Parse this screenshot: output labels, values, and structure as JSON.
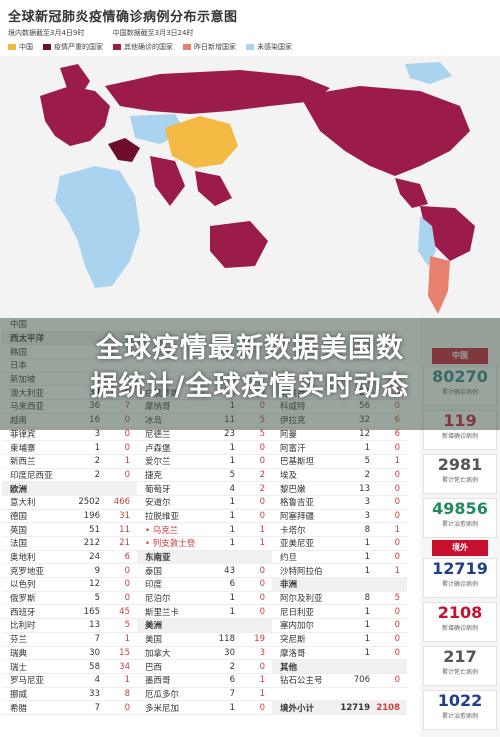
{
  "header": {
    "title": "全球新冠肺炎疫情确诊病例分布示意图",
    "domestic_cutoff": "境内数据截至3月4日9时",
    "foreign_cutoff": "中国数据截至3月3日24时"
  },
  "legend": [
    {
      "label": "中国",
      "color": "#f4b942"
    },
    {
      "label": "疫情严重的国家",
      "color": "#6d0f2a"
    },
    {
      "label": "其他确诊的国家",
      "color": "#9b1b4b"
    },
    {
      "label": "昨日新增国家",
      "color": "#e8806f"
    },
    {
      "label": "未感染国家",
      "color": "#a9d3ee"
    }
  ],
  "headline": {
    "line1": "全球疫情最新数据美国数",
    "line2": "据统计/全球疫情实时动态"
  },
  "table": {
    "col1": [
      {
        "name": "中国",
        "a": "",
        "b": ""
      },
      {
        "name": "西太平洋",
        "a": "",
        "b": "",
        "sec": true
      },
      {
        "name": "韩国",
        "a": "",
        "b": ""
      },
      {
        "name": "日本",
        "a": "",
        "b": ""
      },
      {
        "name": "新加坡",
        "a": "",
        "b": ""
      },
      {
        "name": "澳大利亚",
        "a": "39",
        "b": "6"
      },
      {
        "name": "马来西亚",
        "a": "36",
        "b": "7"
      },
      {
        "name": "越南",
        "a": "16",
        "b": "0"
      },
      {
        "name": "菲律宾",
        "a": "3",
        "b": "0"
      },
      {
        "name": "柬埔寨",
        "a": "1",
        "b": "0"
      },
      {
        "name": "新西兰",
        "a": "2",
        "b": "1"
      },
      {
        "name": "印度尼西亚",
        "a": "2",
        "b": "0"
      },
      {
        "name": "欧洲",
        "a": "",
        "b": "",
        "sec": true
      },
      {
        "name": "意大利",
        "a": "2502",
        "b": "466"
      },
      {
        "name": "德国",
        "a": "196",
        "b": "31"
      },
      {
        "name": "英国",
        "a": "51",
        "b": "11"
      },
      {
        "name": "法国",
        "a": "212",
        "b": "21"
      },
      {
        "name": "奥地利",
        "a": "24",
        "b": "6"
      },
      {
        "name": "克罗地亚",
        "a": "9",
        "b": "0"
      },
      {
        "name": "以色列",
        "a": "12",
        "b": "0"
      },
      {
        "name": "俄罗斯",
        "a": "5",
        "b": "0"
      },
      {
        "name": "西班牙",
        "a": "165",
        "b": "45"
      },
      {
        "name": "比利时",
        "a": "13",
        "b": "5"
      },
      {
        "name": "芬兰",
        "a": "7",
        "b": "1"
      },
      {
        "name": "瑞典",
        "a": "30",
        "b": "15"
      },
      {
        "name": "瑞士",
        "a": "58",
        "b": "34"
      },
      {
        "name": "罗马尼亚",
        "a": "4",
        "b": "1"
      },
      {
        "name": "挪威",
        "a": "33",
        "b": "8"
      },
      {
        "name": "希腊",
        "a": "7",
        "b": "0"
      }
    ],
    "col2": [
      {
        "name": "",
        "a": "",
        "b": ""
      },
      {
        "name": "",
        "a": "",
        "b": ""
      },
      {
        "name": "",
        "a": "",
        "b": ""
      },
      {
        "name": "",
        "a": "",
        "b": ""
      },
      {
        "name": "",
        "a": "",
        "b": ""
      },
      {
        "name": "白俄罗斯",
        "a": "1",
        "b": "0"
      },
      {
        "name": "摩纳哥",
        "a": "1",
        "b": "0"
      },
      {
        "name": "冰岛",
        "a": "11",
        "b": "5"
      },
      {
        "name": "尼德兰",
        "a": "23",
        "b": "5"
      },
      {
        "name": "卢森堡",
        "a": "1",
        "b": "0"
      },
      {
        "name": "爱尔兰",
        "a": "1",
        "b": "0"
      },
      {
        "name": "捷克",
        "a": "5",
        "b": "2"
      },
      {
        "name": "葡萄牙",
        "a": "4",
        "b": "2"
      },
      {
        "name": "安道尔",
        "a": "1",
        "b": "0"
      },
      {
        "name": "拉脱维亚",
        "a": "1",
        "b": "0"
      },
      {
        "name": "• 乌克兰",
        "a": "1",
        "b": "1",
        "hl": true
      },
      {
        "name": "• 列支敦士登",
        "a": "1",
        "b": "1",
        "hl": true
      },
      {
        "name": "东南亚",
        "a": "",
        "b": "",
        "sec": true
      },
      {
        "name": "泰国",
        "a": "43",
        "b": "0"
      },
      {
        "name": "印度",
        "a": "6",
        "b": "0"
      },
      {
        "name": "尼泊尔",
        "a": "1",
        "b": "0"
      },
      {
        "name": "斯里兰卡",
        "a": "1",
        "b": "0"
      },
      {
        "name": "美洲",
        "a": "",
        "b": "",
        "sec": true
      },
      {
        "name": "美国",
        "a": "118",
        "b": "19"
      },
      {
        "name": "加拿大",
        "a": "30",
        "b": "3"
      },
      {
        "name": "巴西",
        "a": "2",
        "b": "0"
      },
      {
        "name": "墨西哥",
        "a": "6",
        "b": "1"
      },
      {
        "name": "厄瓜多尔",
        "a": "7",
        "b": "1"
      },
      {
        "name": "多米尼加",
        "a": "1",
        "b": "0"
      }
    ],
    "col3": [
      {
        "name": "",
        "a": "",
        "b": ""
      },
      {
        "name": "",
        "a": "",
        "b": ""
      },
      {
        "name": "",
        "a": "",
        "b": ""
      },
      {
        "name": "",
        "a": "",
        "b": ""
      },
      {
        "name": "",
        "a": "",
        "b": ""
      },
      {
        "name": "阿联酋",
        "a": "27",
        "b": "6"
      },
      {
        "name": "科威特",
        "a": "56",
        "b": "0"
      },
      {
        "name": "伊拉克",
        "a": "32",
        "b": "6"
      },
      {
        "name": "阿曼",
        "a": "12",
        "b": "6"
      },
      {
        "name": "阿富汗",
        "a": "1",
        "b": "0"
      },
      {
        "name": "巴基斯坦",
        "a": "5",
        "b": "1"
      },
      {
        "name": "埃及",
        "a": "2",
        "b": "0"
      },
      {
        "name": "黎巴嫩",
        "a": "13",
        "b": "0"
      },
      {
        "name": "格鲁吉亚",
        "a": "3",
        "b": "0"
      },
      {
        "name": "阿塞拜疆",
        "a": "3",
        "b": "0"
      },
      {
        "name": "卡塔尔",
        "a": "8",
        "b": "1"
      },
      {
        "name": "亚美尼亚",
        "a": "1",
        "b": "0"
      },
      {
        "name": "约旦",
        "a": "1",
        "b": "0"
      },
      {
        "name": "沙特阿拉伯",
        "a": "1",
        "b": "1"
      },
      {
        "name": "非洲",
        "a": "",
        "b": "",
        "sec": true
      },
      {
        "name": "阿尔及利亚",
        "a": "8",
        "b": "5"
      },
      {
        "name": "尼日利亚",
        "a": "1",
        "b": "0"
      },
      {
        "name": "塞内加尔",
        "a": "1",
        "b": "0"
      },
      {
        "name": "突尼斯",
        "a": "1",
        "b": "0"
      },
      {
        "name": "摩洛哥",
        "a": "1",
        "b": "0"
      },
      {
        "name": "其他",
        "a": "",
        "b": "",
        "sec": true
      },
      {
        "name": "钻石公主号",
        "a": "706",
        "b": "0"
      },
      {
        "name": "",
        "a": "",
        "b": ""
      },
      {
        "name": "境外小计",
        "a": "12719",
        "b": "2108",
        "sec": true
      }
    ]
  },
  "sidebar": {
    "top_tab": "中国",
    "china": [
      {
        "num": "80270",
        "label": "累计确诊病例",
        "color": "#2a7f8c"
      },
      {
        "num": "119",
        "label": "新增确诊病例",
        "color": "#c8102e"
      },
      {
        "num": "2981",
        "label": "累计死亡病例",
        "color": "#555555"
      },
      {
        "num": "49856",
        "label": "累计治愈病例",
        "color": "#1f8a5a"
      }
    ],
    "abroad_tab": "境外",
    "abroad": [
      {
        "num": "12719",
        "label": "累计确诊病例",
        "color": "#1f3f8a"
      },
      {
        "num": "2108",
        "label": "新增确诊病例",
        "color": "#c8102e"
      },
      {
        "num": "217",
        "label": "累计死亡病例",
        "color": "#555555"
      },
      {
        "num": "1022",
        "label": "累计治愈病例",
        "color": "#1f3f8a"
      }
    ]
  }
}
